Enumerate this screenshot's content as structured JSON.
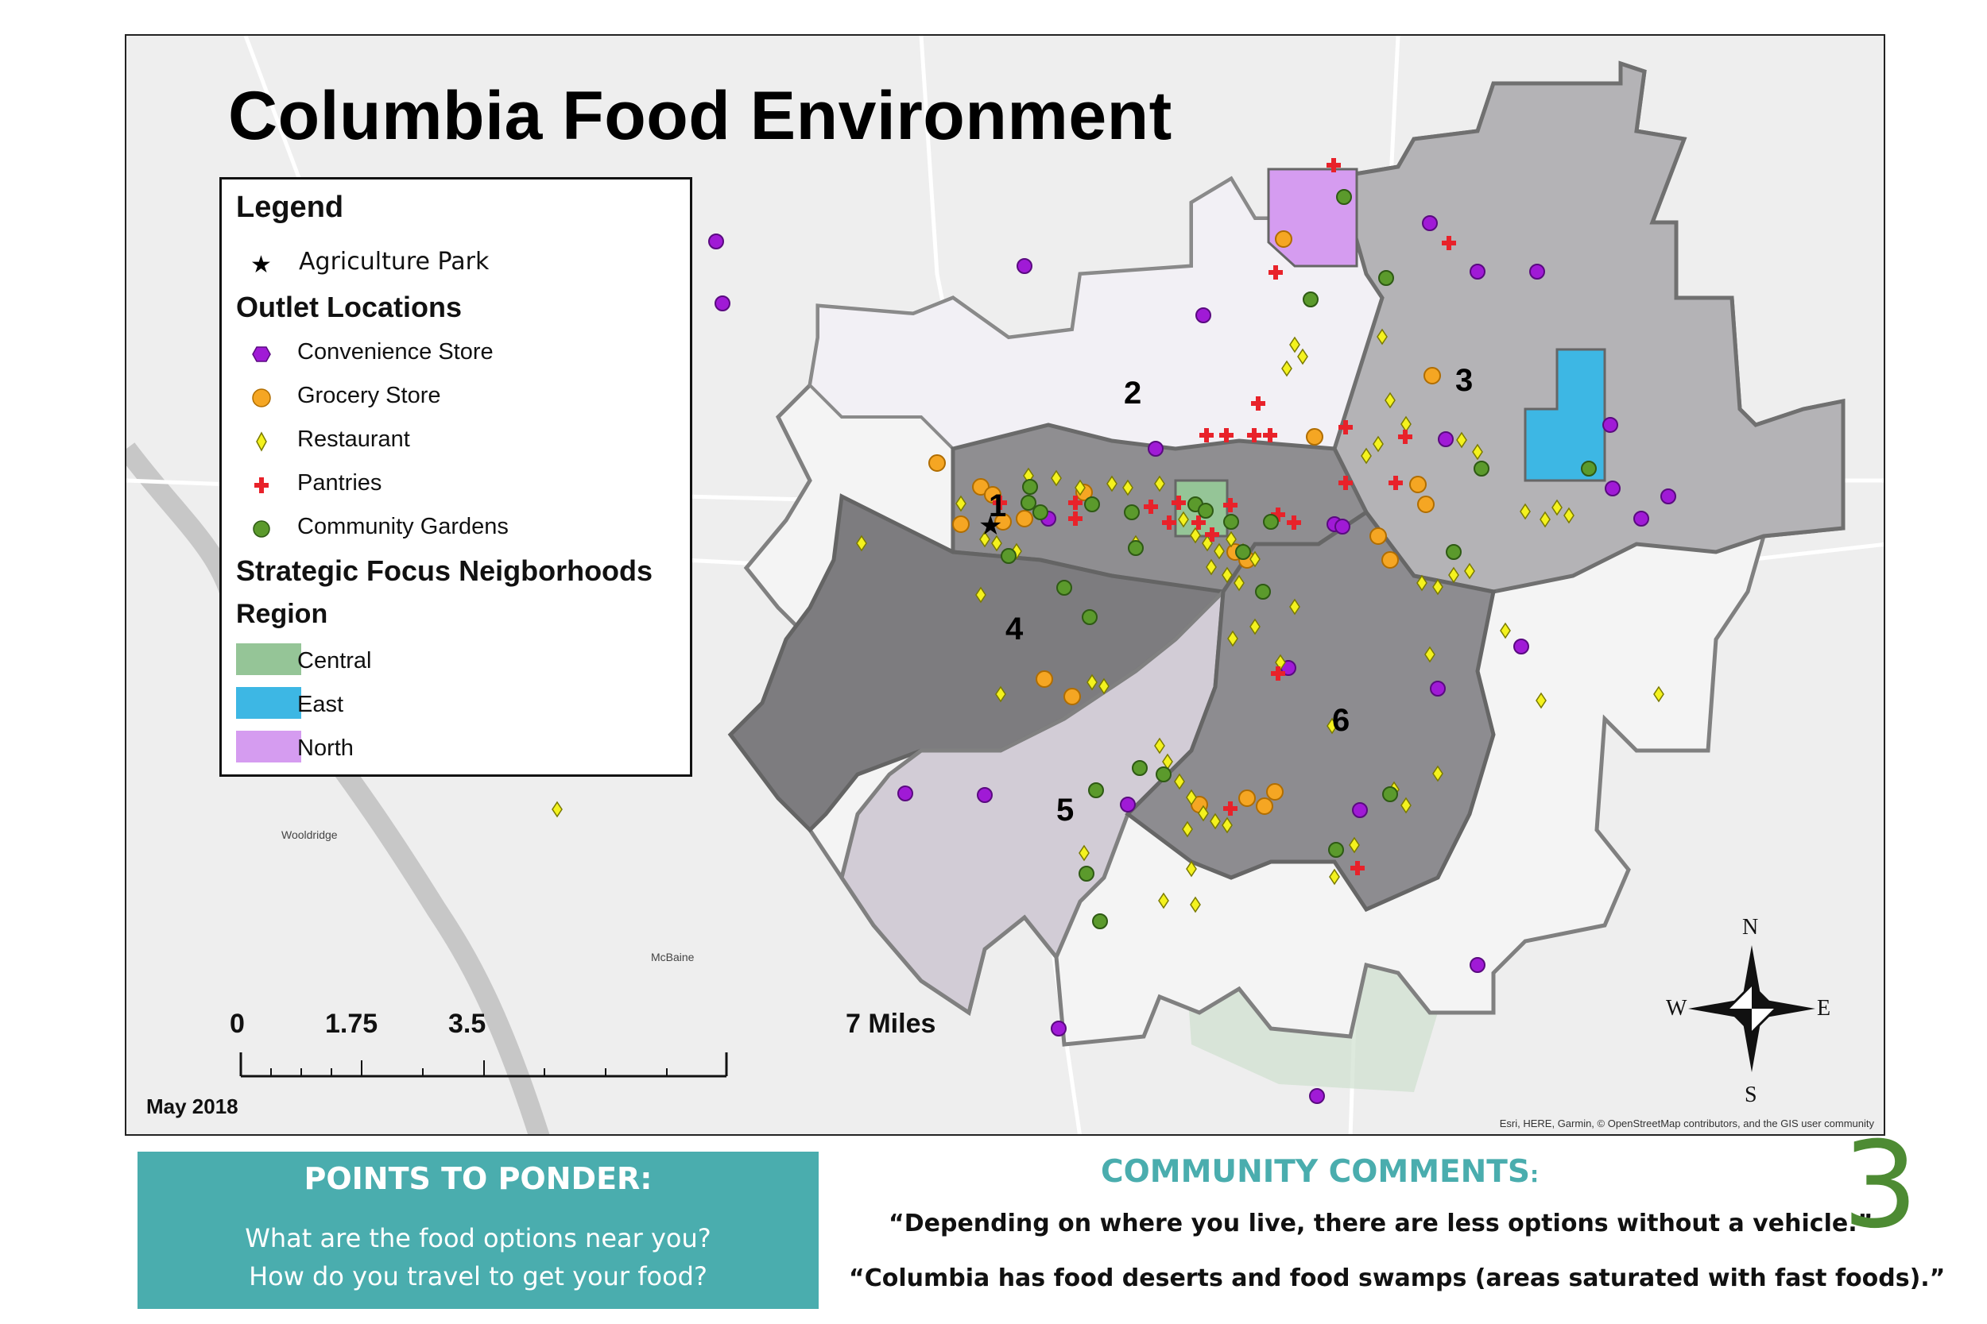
{
  "map": {
    "title": "Columbia Food Environment",
    "date": "May 2018",
    "attribution": "Esri, HERE, Garmin, © OpenStreetMap contributors, and the GIS user community",
    "ward_labels": [
      "1",
      "2",
      "3",
      "4",
      "5",
      "6"
    ],
    "place_labels": [
      "Wooldridge",
      "McBaine"
    ],
    "scale": {
      "ticks": [
        "0",
        "1.75",
        "3.5",
        "7 Miles"
      ]
    },
    "compass": {
      "n": "N",
      "s": "S",
      "e": "E",
      "w": "W"
    }
  },
  "legend": {
    "title": "Legend",
    "agriculture_park": "Agriculture Park",
    "outlets_title": "Outlet Locations",
    "outlets": [
      {
        "label": "Convenience Store",
        "icon": "purple-hexagon",
        "color": "#a01ad6"
      },
      {
        "label": "Grocery Store",
        "icon": "orange-circle",
        "color": "#f5a623"
      },
      {
        "label": "Restaurant",
        "icon": "yellow-diamond",
        "color": "#f4f21e"
      },
      {
        "label": "Pantries",
        "icon": "red-cross",
        "color": "#e8222a"
      },
      {
        "label": "Community Gardens",
        "icon": "green-circle",
        "color": "#5b9a2c"
      }
    ],
    "sfn_title": "Strategic Focus Neigborhoods",
    "region_title": "Region",
    "regions": [
      {
        "label": "Central",
        "color": "#95c597"
      },
      {
        "label": "East",
        "color": "#3db7e4"
      },
      {
        "label": "North",
        "color": "#d59cf0"
      }
    ]
  },
  "ponder": {
    "title": "POINTS TO PONDER:",
    "lines": [
      "What are the food options near you?",
      "How do you travel to get your food?"
    ]
  },
  "comments": {
    "title": "COMMUNITY COMMENTS",
    "title_suffix": ":",
    "items": [
      "“Depending on where you live, there are less options without a vehicle.”",
      "“Columbia has food deserts and food swamps (areas saturated with fast foods).”"
    ]
  },
  "page_number": "3"
}
